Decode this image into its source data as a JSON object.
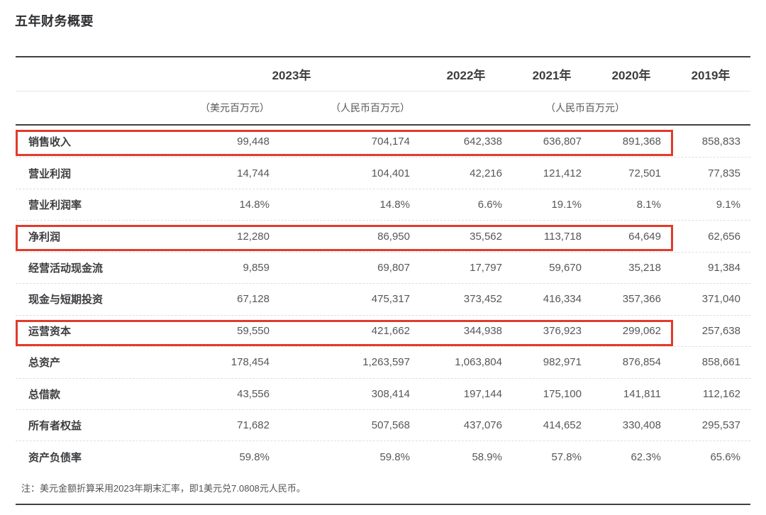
{
  "page_title": "五年财务概要",
  "table": {
    "year_headers": [
      "2023年",
      "2022年",
      "2021年",
      "2020年",
      "2019年"
    ],
    "unit_usd": "（美元百万元）",
    "unit_rmb_2023": "（人民币百万元）",
    "unit_rmb_rest": "（人民币百万元）",
    "rows": [
      {
        "label": "销售收入",
        "values": [
          "99,448",
          "704,174",
          "642,338",
          "636,807",
          "891,368",
          "858,833"
        ],
        "highlighted": true
      },
      {
        "label": "营业利润",
        "values": [
          "14,744",
          "104,401",
          "42,216",
          "121,412",
          "72,501",
          "77,835"
        ],
        "highlighted": false
      },
      {
        "label": "营业利润率",
        "values": [
          "14.8%",
          "14.8%",
          "6.6%",
          "19.1%",
          "8.1%",
          "9.1%"
        ],
        "highlighted": false
      },
      {
        "label": "净利润",
        "values": [
          "12,280",
          "86,950",
          "35,562",
          "113,718",
          "64,649",
          "62,656"
        ],
        "highlighted": true
      },
      {
        "label": "经营活动现金流",
        "values": [
          "9,859",
          "69,807",
          "17,797",
          "59,670",
          "35,218",
          "91,384"
        ],
        "highlighted": false
      },
      {
        "label": "现金与短期投资",
        "values": [
          "67,128",
          "475,317",
          "373,452",
          "416,334",
          "357,366",
          "371,040"
        ],
        "highlighted": false
      },
      {
        "label": "运营资本",
        "values": [
          "59,550",
          "421,662",
          "344,938",
          "376,923",
          "299,062",
          "257,638"
        ],
        "highlighted": true
      },
      {
        "label": "总资产",
        "values": [
          "178,454",
          "1,263,597",
          "1,063,804",
          "982,971",
          "876,854",
          "858,661"
        ],
        "highlighted": false
      },
      {
        "label": "总借款",
        "values": [
          "43,556",
          "308,414",
          "197,144",
          "175,100",
          "141,811",
          "112,162"
        ],
        "highlighted": false
      },
      {
        "label": "所有者权益",
        "values": [
          "71,682",
          "507,568",
          "437,076",
          "414,652",
          "330,408",
          "295,537"
        ],
        "highlighted": false
      },
      {
        "label": "资产负债率",
        "values": [
          "59.8%",
          "59.8%",
          "58.9%",
          "57.8%",
          "62.3%",
          "65.6%"
        ],
        "highlighted": false
      }
    ],
    "note": "注：美元金额折算采用2023年期末汇率，即1美元兑7.0808元人民币。"
  },
  "colors": {
    "highlight_border": "#e23b2a",
    "rule_dark": "#3f4042",
    "rule_light": "#e7e7e7",
    "row_divider": "#dedede",
    "text_dark": "#3c3d3f",
    "text_gray": "#56575a"
  }
}
